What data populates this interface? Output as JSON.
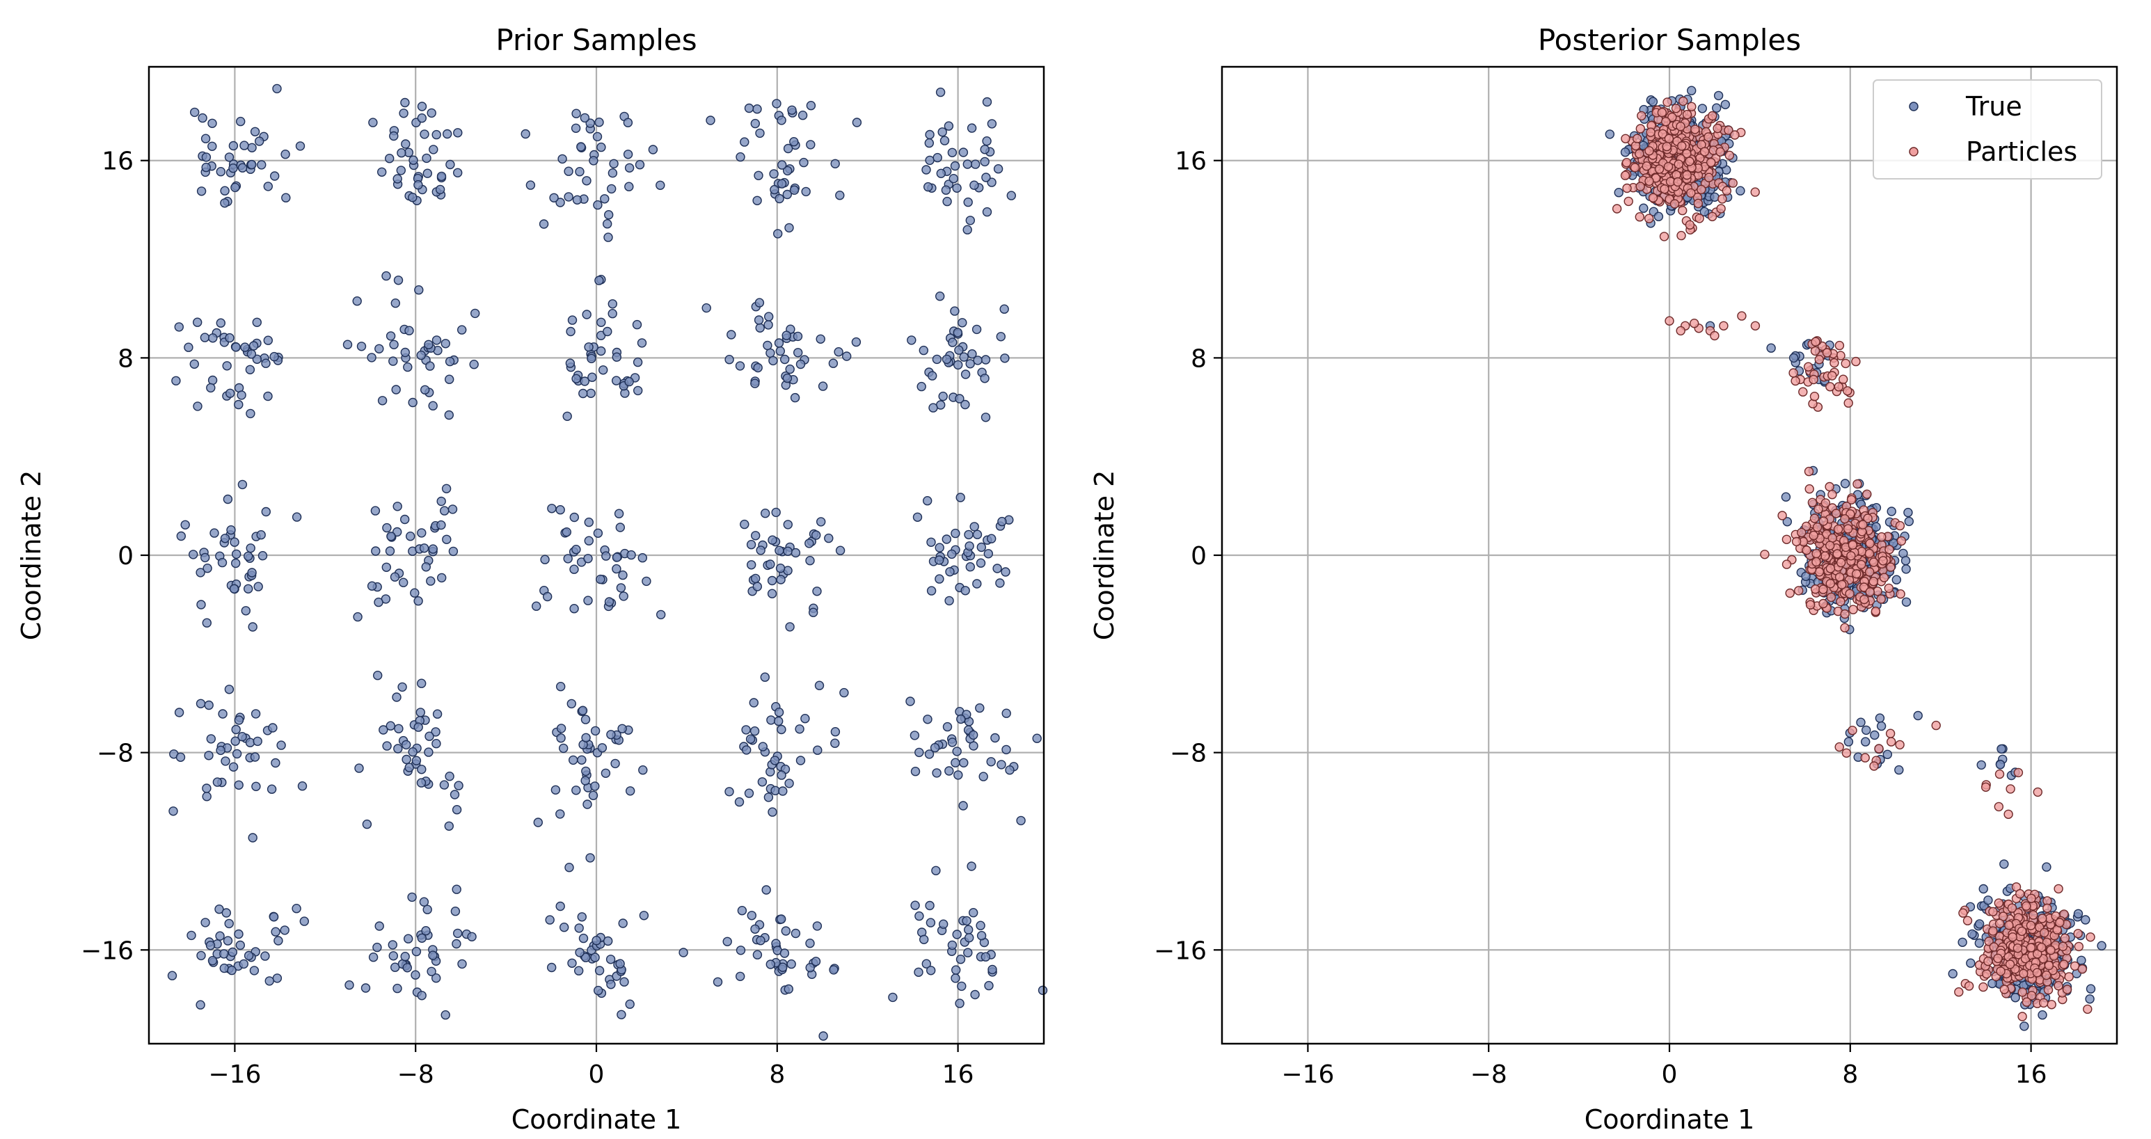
{
  "chart_data": [
    {
      "type": "scatter",
      "title": "Prior Samples",
      "xlabel": "Coordinate 1",
      "ylabel": "Coordinate 2",
      "xlim": [
        -19.8,
        19.8
      ],
      "ylim": [
        -19.8,
        19.8
      ],
      "xticks": [
        -16,
        -8,
        0,
        8,
        16
      ],
      "yticks": [
        -16,
        -8,
        0,
        8,
        16
      ],
      "xtick_labels": [
        "−16",
        "−8",
        "0",
        "8",
        "16"
      ],
      "ytick_labels": [
        "−16",
        "−8",
        "0",
        "8",
        "16"
      ],
      "grid": true,
      "legend": null,
      "series": [
        {
          "color": "#7d91bd",
          "edge": "#1f3057",
          "cluster_centers": [
            [
              -16,
              16
            ],
            [
              -8,
              16
            ],
            [
              0,
              16
            ],
            [
              8,
              16
            ],
            [
              16,
              16
            ],
            [
              -16,
              8
            ],
            [
              -8,
              8
            ],
            [
              0,
              8
            ],
            [
              8,
              8
            ],
            [
              16,
              8
            ],
            [
              -16,
              0
            ],
            [
              -8,
              0
            ],
            [
              0,
              0
            ],
            [
              8,
              0
            ],
            [
              16,
              0
            ],
            [
              -16,
              -8
            ],
            [
              -8,
              -8
            ],
            [
              0,
              -8
            ],
            [
              8,
              -8
            ],
            [
              16,
              -8
            ],
            [
              -16,
              -16
            ],
            [
              -8,
              -16
            ],
            [
              0,
              -16
            ],
            [
              8,
              -16
            ],
            [
              16,
              -16
            ]
          ],
          "points_per_cluster": 40,
          "cluster_spread": 1.2
        }
      ]
    },
    {
      "type": "scatter",
      "title": "Posterior Samples",
      "xlabel": "Coordinate 1",
      "ylabel": "Coordinate 2",
      "xlim": [
        -19.8,
        19.8
      ],
      "ylim": [
        -19.8,
        19.8
      ],
      "xticks": [
        -16,
        -8,
        0,
        8,
        16
      ],
      "yticks": [
        -16,
        -8,
        0,
        8,
        16
      ],
      "xtick_labels": [
        "−16",
        "−8",
        "0",
        "8",
        "16"
      ],
      "ytick_labels": [
        "−16",
        "−8",
        "0",
        "8",
        "16"
      ],
      "grid": true,
      "legend": "top-right",
      "series": [
        {
          "name": "True",
          "color": "#7d91bd",
          "edge": "#1f3057",
          "clusters": [
            {
              "center": [
                0.5,
                16
              ],
              "n": 420,
              "spread": 1.0
            },
            {
              "center": [
                8,
                0
              ],
              "n": 380,
              "spread": 1.05
            },
            {
              "center": [
                16,
                -16
              ],
              "n": 380,
              "spread": 1.0
            },
            {
              "center": [
                6.5,
                7.8
              ],
              "n": 18,
              "spread": 0.7
            },
            {
              "center": [
                9,
                -7.5
              ],
              "n": 14,
              "spread": 0.6
            },
            {
              "center": [
                14.5,
                -8.6
              ],
              "n": 6,
              "spread": 0.5
            }
          ],
          "bridge_points": [
            [
              1.8,
              9.3
            ],
            [
              4.5,
              8.4
            ],
            [
              5.5,
              8.0
            ],
            [
              11,
              -6.5
            ],
            [
              13.8,
              -8.5
            ],
            [
              15.3,
              -8.8
            ]
          ]
        },
        {
          "name": "Particles",
          "color": "#f0a0a0",
          "edge": "#6e2a2a",
          "clusters": [
            {
              "center": [
                0.4,
                16
              ],
              "n": 380,
              "spread": 1.0
            },
            {
              "center": [
                7.8,
                0
              ],
              "n": 330,
              "spread": 1.05
            },
            {
              "center": [
                15.8,
                -16
              ],
              "n": 330,
              "spread": 1.0
            },
            {
              "center": [
                6.8,
                7.2
              ],
              "n": 40,
              "spread": 0.8
            },
            {
              "center": [
                8.8,
                -7.8
              ],
              "n": 10,
              "spread": 0.6
            },
            {
              "center": [
                14.8,
                -9.2
              ],
              "n": 5,
              "spread": 0.5
            }
          ],
          "bridge_points": [
            [
              0,
              9.5
            ],
            [
              0.7,
              9.3
            ],
            [
              1.3,
              9.2
            ],
            [
              1.8,
              9.1
            ],
            [
              2.4,
              9.3
            ],
            [
              3.2,
              9.7
            ],
            [
              3.8,
              9.3
            ],
            [
              2.0,
              8.9
            ],
            [
              1.1,
              9.4
            ],
            [
              0.5,
              9.1
            ],
            [
              11.8,
              -6.9
            ],
            [
              14.0,
              -9.4
            ],
            [
              15.0,
              -10.5
            ],
            [
              16.3,
              -9.6
            ],
            [
              17.6,
              -17.6
            ],
            [
              18.5,
              -18.4
            ]
          ]
        }
      ]
    }
  ]
}
